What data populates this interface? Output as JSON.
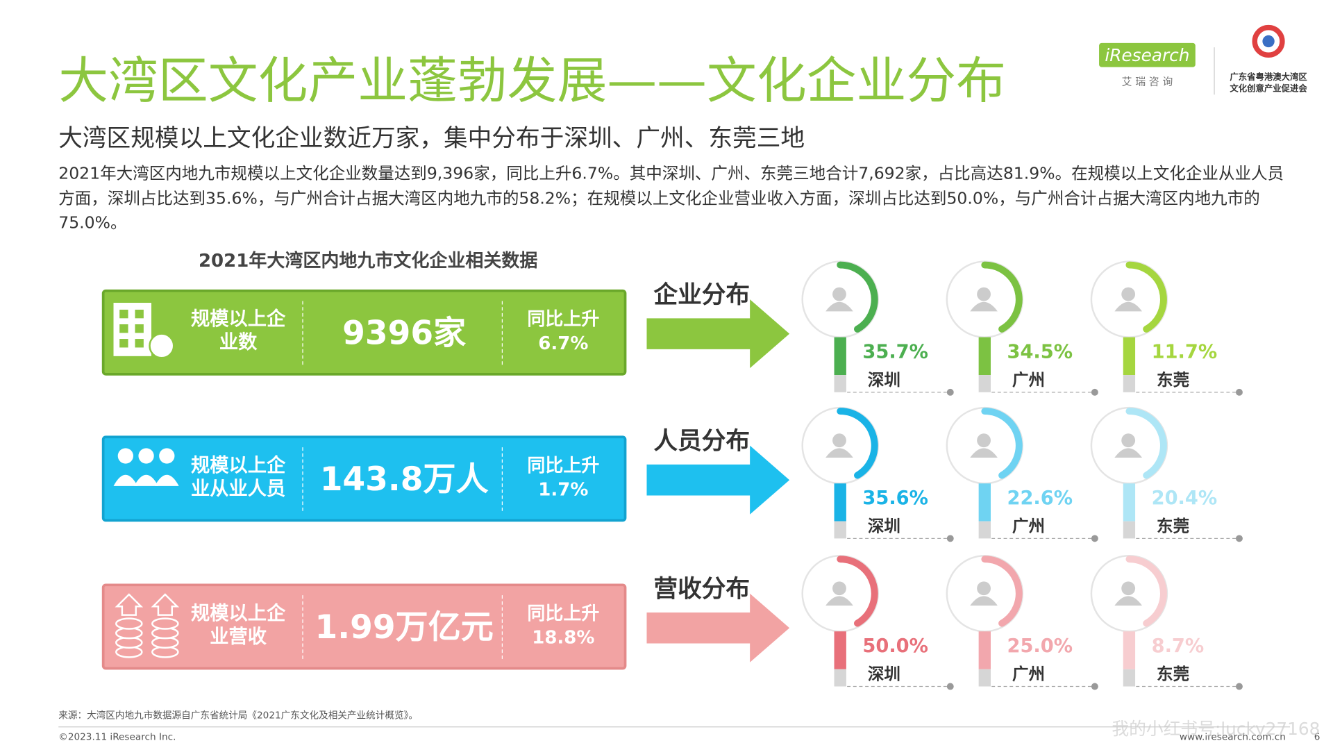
{
  "header": {
    "title": "大湾区文化产业蓬勃发展——文化企业分布",
    "subtitle": "大湾区规模以上文化企业数近万家，集中分布于深圳、广州、东莞三地",
    "body": "2021年大湾区内地九市规模以上文化企业数量达到9,396家，同比上升6.7%。其中深圳、广州、东莞三地合计7,692家，占比高达81.9%。在规模以上文化企业从业人员方面，深圳占比达到35.6%，与广州合计占据大湾区内地九市的58.2%；在规模以上文化企业营业收入方面，深圳占比达到50.0%，与广州合计占据大湾区内地九市的75.0%。",
    "logo": {
      "brand": "iResearch",
      "brand_cn": "艾 瑞 咨 询",
      "partner_lines": [
        "广东省粤港澳大湾区",
        "文化创意产业促进会"
      ]
    }
  },
  "section_title": "2021年大湾区内地九市文化企业相关数据",
  "rows": [
    {
      "label_lines": [
        "规模以上企",
        "业数"
      ],
      "value": "9396家",
      "growth_label": "同比上升",
      "growth": "6.7%",
      "category": "企业分布",
      "cities": [
        {
          "name": "深圳",
          "share": "35.7%"
        },
        {
          "name": "广州",
          "share": "34.5%"
        },
        {
          "name": "东莞",
          "share": "11.7%"
        }
      ]
    },
    {
      "label_lines": [
        "规模以上企",
        "业从业人员"
      ],
      "value": "143.8万人",
      "growth_label": "同比上升",
      "growth": "1.7%",
      "category": "人员分布",
      "cities": [
        {
          "name": "深圳",
          "share": "35.6%"
        },
        {
          "name": "广州",
          "share": "22.6%"
        },
        {
          "name": "东莞",
          "share": "20.4%"
        }
      ]
    },
    {
      "label_lines": [
        "规模以上企",
        "业营收"
      ],
      "value": "1.99万亿元",
      "growth_label": "同比上升",
      "growth": "18.8%",
      "category": "营收分布",
      "cities": [
        {
          "name": "深圳",
          "share": "50.0%"
        },
        {
          "name": "广州",
          "share": "25.0%"
        },
        {
          "name": "东莞",
          "share": "8.7%"
        }
      ]
    }
  ],
  "footer": {
    "source": "来源：大湾区内地九市数据源自广东省统计局《2021广东文化及相关产业统计概览》。",
    "copyright": "©2023.11 iResearch Inc.",
    "site": "www.iresearch.com.cn",
    "page": "6",
    "watermark": "我的小红书号:lucky27168"
  }
}
